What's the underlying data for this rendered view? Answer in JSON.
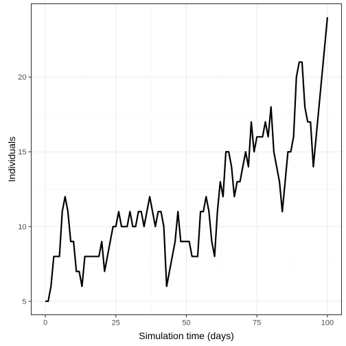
{
  "chart_data": {
    "type": "line",
    "title": "",
    "xlabel": "Simulation time (days)",
    "ylabel": "Individuals",
    "xlim": [
      -5,
      105
    ],
    "ylim": [
      4.1,
      24.9
    ],
    "x_ticks": [
      0,
      25,
      50,
      75,
      100
    ],
    "y_ticks": [
      5,
      10,
      15,
      20
    ],
    "x_tick_labels": [
      "0",
      "25",
      "50",
      "75",
      "100"
    ],
    "y_tick_labels": [
      "5",
      "10",
      "15",
      "20"
    ],
    "grid": true,
    "line_color": "#000000",
    "series": [
      {
        "x": [
          0,
          1,
          2,
          3,
          4,
          5,
          6,
          7,
          8,
          9,
          10,
          11,
          12,
          13,
          14,
          15,
          16,
          17,
          18,
          19,
          20,
          21,
          22,
          23,
          24,
          25,
          26,
          27,
          28,
          29,
          30,
          31,
          32,
          33,
          34,
          35,
          36,
          37,
          38,
          39,
          40,
          41,
          42,
          43,
          44,
          45,
          46,
          47,
          48,
          49,
          50,
          51,
          52,
          53,
          54,
          55,
          56,
          57,
          58,
          59,
          60,
          61,
          62,
          63,
          64,
          65,
          66,
          67,
          68,
          69,
          70,
          71,
          72,
          73,
          74,
          75,
          76,
          77,
          78,
          79,
          80,
          81,
          82,
          83,
          84,
          85,
          86,
          87,
          88,
          89,
          90,
          91,
          92,
          93,
          94,
          95,
          96,
          97,
          98,
          99,
          100
        ],
        "y": [
          5,
          5,
          6,
          8,
          8,
          8,
          11,
          12,
          11,
          9,
          9,
          7,
          7,
          6,
          8,
          8,
          8,
          8,
          8,
          8,
          9,
          7,
          8,
          9,
          10,
          10,
          11,
          10,
          10,
          10,
          11,
          10,
          10,
          11,
          11,
          10,
          11,
          12,
          11,
          10,
          11,
          11,
          10,
          6,
          7,
          8,
          9,
          11,
          9,
          9,
          9,
          9,
          8,
          8,
          8,
          11,
          11,
          12,
          11,
          9,
          8,
          11,
          13,
          12,
          15,
          15,
          14,
          12,
          13,
          13,
          14,
          15,
          14,
          17,
          15,
          16,
          16,
          16,
          17,
          16,
          18,
          15,
          14,
          13,
          11,
          13,
          15,
          15,
          16,
          20,
          21,
          21,
          18,
          17,
          17,
          14,
          16,
          18,
          20,
          22,
          24
        ]
      }
    ]
  }
}
